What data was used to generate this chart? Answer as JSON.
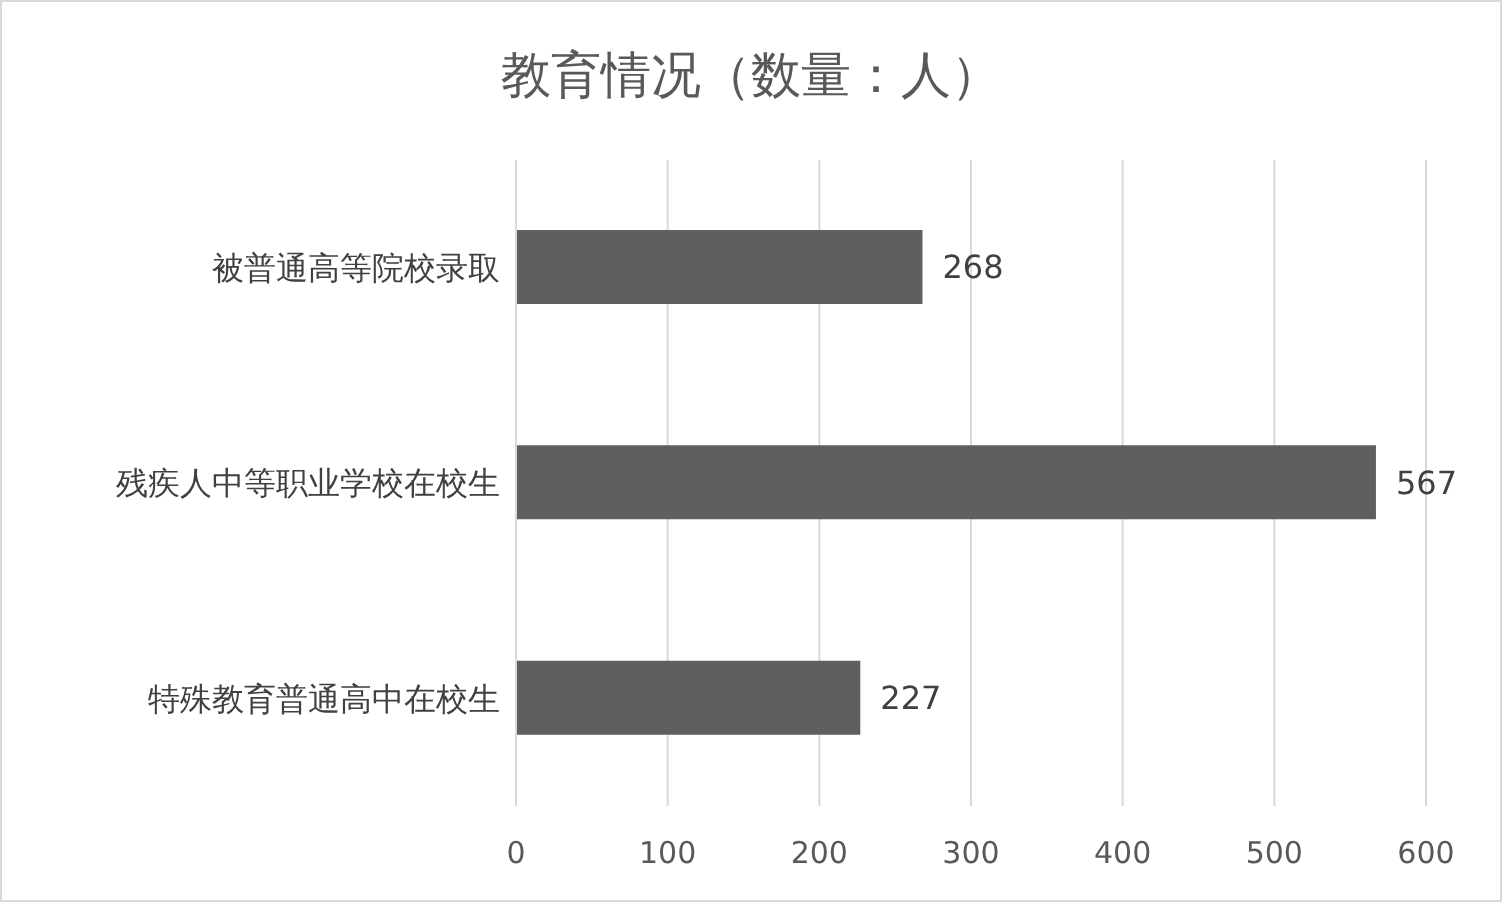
{
  "chart_data": {
    "type": "bar",
    "title": "教育情况（数量：人）",
    "orientation": "horizontal",
    "categories": [
      "被普通高等院校录取",
      "残疾人中等职业学校在校生",
      "特殊教育普通高中在校生"
    ],
    "values": [
      268,
      567,
      227
    ],
    "color": "#5f5f5f",
    "xlim": [
      0,
      600
    ],
    "xticks": [
      0,
      100,
      200,
      300,
      400,
      500,
      600
    ],
    "grid": "x",
    "data_labels": true
  }
}
